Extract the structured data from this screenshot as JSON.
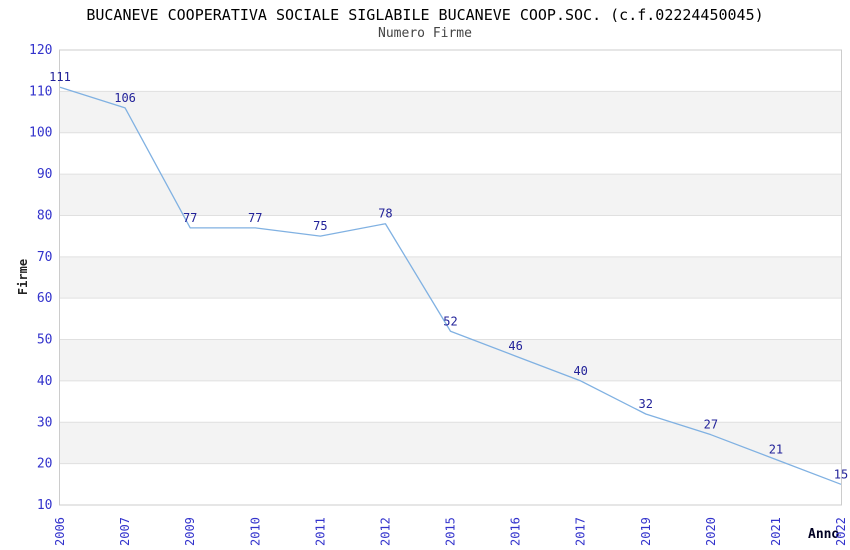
{
  "header": {
    "title": "BUCANEVE COOPERATIVA SOCIALE SIGLABILE BUCANEVE COOP.SOC. (c.f.02224450045)",
    "subtitle": "Numero Firme"
  },
  "chart_data": {
    "type": "line",
    "title": "BUCANEVE COOPERATIVA SOCIALE SIGLABILE BUCANEVE COOP.SOC. (c.f.02224450045)",
    "subtitle": "Numero Firme",
    "xlabel": "Anno",
    "ylabel": "Firme",
    "categories": [
      "2006",
      "2007",
      "2009",
      "2010",
      "2011",
      "2012",
      "2015",
      "2016",
      "2017",
      "2019",
      "2020",
      "2021",
      "2022"
    ],
    "values": [
      111,
      106,
      77,
      77,
      75,
      78,
      52,
      46,
      40,
      32,
      27,
      21,
      15
    ],
    "ylim": [
      10,
      120
    ],
    "ytick_step": 10,
    "yticks": [
      10,
      20,
      30,
      40,
      50,
      60,
      70,
      80,
      90,
      100,
      110,
      120
    ],
    "grid": "horizontal alternating bands every 10 units",
    "legend_position": "none",
    "point_labels_visible": true,
    "x_tick_rotation_deg": -90
  },
  "colors": {
    "line": "#80b1e2",
    "point_label": "#222299",
    "tick_label": "#3333cc",
    "band_fill": "#f3f3f3",
    "grid_line": "#e0e0e0",
    "plot_border": "#cccccc",
    "title": "#000000",
    "subtitle": "#444444",
    "axis_title": "#222222",
    "background": "#ffffff"
  }
}
